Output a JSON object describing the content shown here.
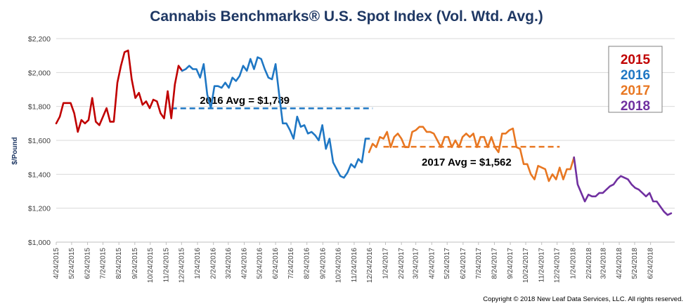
{
  "chart_data": {
    "type": "line",
    "title": "Cannabis Benchmarks® U.S. Spot Index (Vol. Wtd. Avg.)",
    "ylabel": "$/Pound",
    "xlabel": "",
    "ylim": [
      1000,
      2200
    ],
    "yticks": [
      "$1,000",
      "$1,200",
      "$1,400",
      "$1,600",
      "$1,800",
      "$2,000",
      "$2,200"
    ],
    "ytick_values": [
      1000,
      1200,
      1400,
      1600,
      1800,
      2000,
      2200
    ],
    "xticks": [
      "4/24/2015",
      "5/24/2015",
      "6/24/2015",
      "7/24/2015",
      "8/24/2015",
      "9/24/2015",
      "10/24/2015",
      "11/24/2015",
      "12/24/2015",
      "1/24/2016",
      "2/24/2016",
      "3/24/2016",
      "4/24/2016",
      "5/24/2016",
      "6/24/2016",
      "7/24/2016",
      "8/24/2016",
      "9/24/2016",
      "10/24/2016",
      "11/24/2016",
      "12/24/2016",
      "1/24/2017",
      "2/24/2017",
      "3/24/2017",
      "4/24/2017",
      "5/24/2017",
      "6/24/2017",
      "7/24/2017",
      "8/24/2017",
      "9/24/2017",
      "10/24/2017",
      "11/24/2017",
      "12/24/2017",
      "1/24/2018",
      "2/24/2018",
      "3/24/2018",
      "4/24/2018",
      "5/24/2018",
      "6/24/2018"
    ],
    "x_start": "2015-04-24",
    "week_step_days": 7,
    "grid": true,
    "legend_position": "top-right",
    "legend_entries": [
      "2015",
      "2016",
      "2017",
      "2018"
    ],
    "series": [
      {
        "name": "2015",
        "color": "#c00000",
        "start_week": 0,
        "values": [
          1700,
          1740,
          1820,
          1820,
          1820,
          1760,
          1650,
          1720,
          1700,
          1720,
          1850,
          1710,
          1690,
          1740,
          1790,
          1710,
          1710,
          1940,
          2040,
          2120,
          2130,
          1960,
          1850,
          1880,
          1810,
          1830,
          1790,
          1840,
          1830,
          1760,
          1730,
          1890,
          1730,
          1930,
          2040,
          2010
        ]
      },
      {
        "name": "2016",
        "color": "#1f77c4",
        "start_week": 35,
        "values": [
          2010,
          2020,
          2040,
          2020,
          2020,
          1970,
          2050,
          1870,
          1790,
          1920,
          1920,
          1910,
          1940,
          1910,
          1970,
          1950,
          1980,
          2040,
          2010,
          2080,
          2020,
          2090,
          2080,
          2020,
          1970,
          1960,
          2050,
          1870,
          1700,
          1700,
          1660,
          1610,
          1740,
          1680,
          1690,
          1640,
          1650,
          1630,
          1600,
          1690,
          1550,
          1610,
          1470,
          1430,
          1390,
          1380,
          1410,
          1460,
          1440,
          1490,
          1470,
          1610,
          1610
        ]
      },
      {
        "name": "2017",
        "color": "#e87722",
        "start_week": 87,
        "values": [
          1530,
          1580,
          1560,
          1620,
          1610,
          1650,
          1560,
          1620,
          1640,
          1610,
          1560,
          1560,
          1650,
          1660,
          1680,
          1680,
          1650,
          1650,
          1640,
          1600,
          1560,
          1620,
          1620,
          1560,
          1600,
          1560,
          1620,
          1640,
          1620,
          1640,
          1560,
          1620,
          1620,
          1560,
          1620,
          1560,
          1530,
          1640,
          1640,
          1660,
          1670,
          1560,
          1550,
          1460,
          1460,
          1400,
          1370,
          1450,
          1440,
          1430,
          1360,
          1400,
          1370,
          1440,
          1370,
          1430,
          1430,
          1500
        ]
      },
      {
        "name": "2018",
        "color": "#7030a0",
        "start_week": 144,
        "values": [
          1500,
          1340,
          1290,
          1240,
          1280,
          1270,
          1270,
          1290,
          1290,
          1310,
          1330,
          1340,
          1370,
          1390,
          1380,
          1370,
          1340,
          1320,
          1310,
          1290,
          1270,
          1290,
          1240,
          1240,
          1210,
          1180,
          1160,
          1170
        ]
      }
    ],
    "annotations": [
      {
        "text": "2016 Avg =   $1,789",
        "value": 1789,
        "color": "#1f77c4",
        "x_range": [
          "2015-12-04",
          "2016-12-30"
        ]
      },
      {
        "text": "2017 Avg = $1,562",
        "value": 1562,
        "color": "#e87722",
        "x_range": [
          "2017-01-20",
          "2017-12-29"
        ]
      }
    ]
  },
  "copyright": "Copyright © 2018 New Leaf Data Services, LLC. All rights reserved."
}
